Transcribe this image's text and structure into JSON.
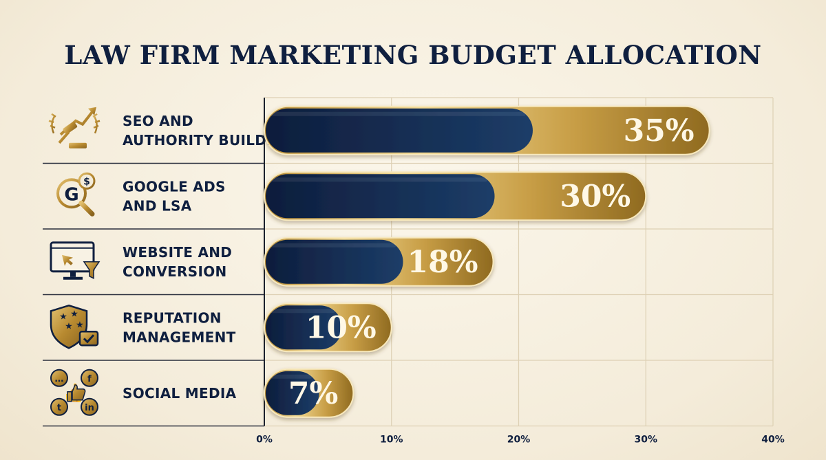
{
  "colors": {
    "navy": "#0f1f3f",
    "navy_light": "#1d3a66",
    "gold": "#c9a24a",
    "gold_light": "#f3dd9a",
    "gold_dark": "#9a7424"
  },
  "chart_data": {
    "type": "bar",
    "orientation": "horizontal",
    "title": "LAW FIRM MARKETING BUDGET ALLOCATION",
    "categories": [
      {
        "lines": [
          "SEO AND",
          "AUTHORITY BUILDING"
        ],
        "icon": "gavel-growth-icon"
      },
      {
        "lines": [
          "GOOGLE ADS",
          "AND LSA"
        ],
        "icon": "google-search-dollar-icon"
      },
      {
        "lines": [
          "WEBSITE AND",
          "CONVERSION"
        ],
        "icon": "monitor-funnel-icon"
      },
      {
        "lines": [
          "REPUTATION",
          "MANAGEMENT"
        ],
        "icon": "shield-stars-icon"
      },
      {
        "lines": [
          "SOCIAL MEDIA"
        ],
        "icon": "social-media-icon"
      }
    ],
    "values": [
      35,
      30,
      18,
      10,
      7
    ],
    "value_labels": [
      "35%",
      "30%",
      "18%",
      "10%",
      "7%"
    ],
    "xlim": [
      0,
      40
    ],
    "ticks": [
      {
        "value": 0,
        "label": "0%"
      },
      {
        "value": 10,
        "label": "10%"
      },
      {
        "value": 20,
        "label": "20%"
      },
      {
        "value": 30,
        "label": "30%"
      },
      {
        "value": 40,
        "label": "40%"
      }
    ],
    "grid": true
  }
}
